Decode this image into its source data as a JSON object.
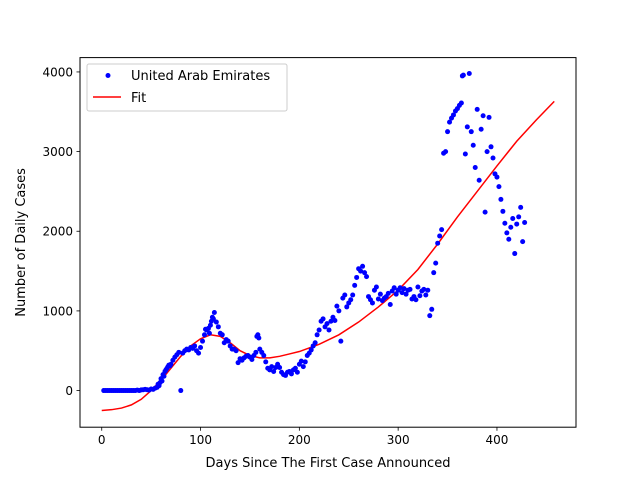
{
  "chart_data": {
    "type": "scatter",
    "title": "",
    "xlabel": "Days Since The First Case Announced",
    "ylabel": "Number of Daily Cases",
    "xlim": [
      -22,
      480
    ],
    "ylim": [
      -460,
      4180
    ],
    "xticks": [
      0,
      100,
      200,
      300,
      400
    ],
    "yticks": [
      0,
      1000,
      2000,
      3000,
      4000
    ],
    "grid": false,
    "legend_position": "top-left",
    "series": [
      {
        "name": "United Arab Emirates",
        "kind": "scatter",
        "color": "#0000ff",
        "points": [
          [
            2,
            0
          ],
          [
            4,
            0
          ],
          [
            6,
            0
          ],
          [
            8,
            0
          ],
          [
            10,
            0
          ],
          [
            12,
            0
          ],
          [
            14,
            0
          ],
          [
            16,
            0
          ],
          [
            18,
            0
          ],
          [
            20,
            0
          ],
          [
            22,
            0
          ],
          [
            24,
            0
          ],
          [
            26,
            0
          ],
          [
            28,
            0
          ],
          [
            30,
            0
          ],
          [
            32,
            0
          ],
          [
            34,
            0
          ],
          [
            36,
            5
          ],
          [
            38,
            0
          ],
          [
            40,
            8
          ],
          [
            42,
            10
          ],
          [
            44,
            15
          ],
          [
            46,
            10
          ],
          [
            48,
            5
          ],
          [
            50,
            20
          ],
          [
            52,
            15
          ],
          [
            54,
            30
          ],
          [
            56,
            40
          ],
          [
            57,
            80
          ],
          [
            58,
            60
          ],
          [
            59,
            100
          ],
          [
            60,
            150
          ],
          [
            61,
            120
          ],
          [
            62,
            200
          ],
          [
            63,
            180
          ],
          [
            64,
            240
          ],
          [
            65,
            260
          ],
          [
            66,
            280
          ],
          [
            67,
            300
          ],
          [
            68,
            320
          ],
          [
            69,
            310
          ],
          [
            70,
            330
          ],
          [
            72,
            380
          ],
          [
            74,
            420
          ],
          [
            76,
            450
          ],
          [
            78,
            480
          ],
          [
            80,
            0
          ],
          [
            82,
            470
          ],
          [
            84,
            500
          ],
          [
            86,
            520
          ],
          [
            88,
            510
          ],
          [
            90,
            540
          ],
          [
            92,
            530
          ],
          [
            94,
            560
          ],
          [
            96,
            500
          ],
          [
            98,
            470
          ],
          [
            100,
            540
          ],
          [
            102,
            620
          ],
          [
            104,
            700
          ],
          [
            105,
            770
          ],
          [
            106,
            760
          ],
          [
            108,
            780
          ],
          [
            109,
            720
          ],
          [
            110,
            820
          ],
          [
            111,
            870
          ],
          [
            112,
            920
          ],
          [
            113,
            900
          ],
          [
            114,
            980
          ],
          [
            116,
            860
          ],
          [
            118,
            800
          ],
          [
            120,
            720
          ],
          [
            122,
            700
          ],
          [
            124,
            600
          ],
          [
            126,
            640
          ],
          [
            128,
            620
          ],
          [
            130,
            560
          ],
          [
            132,
            520
          ],
          [
            134,
            520
          ],
          [
            136,
            500
          ],
          [
            138,
            350
          ],
          [
            140,
            400
          ],
          [
            142,
            380
          ],
          [
            144,
            410
          ],
          [
            146,
            430
          ],
          [
            148,
            440
          ],
          [
            150,
            420
          ],
          [
            152,
            390
          ],
          [
            154,
            440
          ],
          [
            156,
            480
          ],
          [
            157,
            680
          ],
          [
            158,
            700
          ],
          [
            159,
            660
          ],
          [
            160,
            520
          ],
          [
            162,
            480
          ],
          [
            164,
            440
          ],
          [
            166,
            360
          ],
          [
            168,
            280
          ],
          [
            170,
            260
          ],
          [
            172,
            300
          ],
          [
            174,
            240
          ],
          [
            176,
            290
          ],
          [
            178,
            330
          ],
          [
            180,
            290
          ],
          [
            182,
            230
          ],
          [
            184,
            200
          ],
          [
            186,
            190
          ],
          [
            188,
            230
          ],
          [
            190,
            240
          ],
          [
            192,
            210
          ],
          [
            194,
            260
          ],
          [
            196,
            280
          ],
          [
            198,
            230
          ],
          [
            200,
            330
          ],
          [
            202,
            370
          ],
          [
            204,
            300
          ],
          [
            206,
            360
          ],
          [
            208,
            440
          ],
          [
            210,
            470
          ],
          [
            212,
            510
          ],
          [
            214,
            560
          ],
          [
            216,
            600
          ],
          [
            218,
            700
          ],
          [
            220,
            760
          ],
          [
            222,
            870
          ],
          [
            224,
            900
          ],
          [
            226,
            800
          ],
          [
            228,
            840
          ],
          [
            230,
            760
          ],
          [
            232,
            870
          ],
          [
            234,
            920
          ],
          [
            236,
            880
          ],
          [
            238,
            1060
          ],
          [
            240,
            1000
          ],
          [
            242,
            620
          ],
          [
            244,
            1160
          ],
          [
            246,
            1200
          ],
          [
            248,
            1050
          ],
          [
            250,
            1100
          ],
          [
            252,
            1140
          ],
          [
            254,
            1200
          ],
          [
            256,
            1320
          ],
          [
            258,
            1420
          ],
          [
            260,
            1530
          ],
          [
            262,
            1500
          ],
          [
            264,
            1560
          ],
          [
            266,
            1480
          ],
          [
            268,
            1430
          ],
          [
            270,
            1180
          ],
          [
            272,
            1140
          ],
          [
            274,
            1100
          ],
          [
            276,
            1260
          ],
          [
            278,
            1300
          ],
          [
            280,
            1150
          ],
          [
            282,
            1210
          ],
          [
            284,
            1130
          ],
          [
            286,
            1160
          ],
          [
            288,
            1180
          ],
          [
            290,
            1220
          ],
          [
            292,
            1080
          ],
          [
            294,
            1250
          ],
          [
            296,
            1290
          ],
          [
            298,
            1210
          ],
          [
            300,
            1260
          ],
          [
            302,
            1290
          ],
          [
            304,
            1230
          ],
          [
            306,
            1280
          ],
          [
            308,
            1210
          ],
          [
            310,
            1260
          ],
          [
            312,
            1270
          ],
          [
            314,
            1150
          ],
          [
            316,
            1180
          ],
          [
            318,
            1140
          ],
          [
            320,
            1300
          ],
          [
            322,
            1190
          ],
          [
            324,
            1250
          ],
          [
            326,
            1270
          ],
          [
            328,
            1200
          ],
          [
            330,
            1260
          ],
          [
            332,
            940
          ],
          [
            334,
            1020
          ],
          [
            336,
            1480
          ],
          [
            338,
            1600
          ],
          [
            340,
            1850
          ],
          [
            342,
            1940
          ],
          [
            344,
            2020
          ],
          [
            346,
            2980
          ],
          [
            348,
            3000
          ],
          [
            350,
            3250
          ],
          [
            352,
            3370
          ],
          [
            354,
            3420
          ],
          [
            356,
            3460
          ],
          [
            358,
            3510
          ],
          [
            360,
            3540
          ],
          [
            362,
            3580
          ],
          [
            364,
            3610
          ],
          [
            365,
            3950
          ],
          [
            366,
            3960
          ],
          [
            368,
            2970
          ],
          [
            370,
            3310
          ],
          [
            372,
            3980
          ],
          [
            374,
            3250
          ],
          [
            376,
            3080
          ],
          [
            378,
            2800
          ],
          [
            380,
            3530
          ],
          [
            382,
            2640
          ],
          [
            384,
            3280
          ],
          [
            386,
            3450
          ],
          [
            388,
            2240
          ],
          [
            390,
            3000
          ],
          [
            392,
            3430
          ],
          [
            394,
            3060
          ],
          [
            396,
            2920
          ],
          [
            398,
            2720
          ],
          [
            400,
            2680
          ],
          [
            402,
            2560
          ],
          [
            404,
            2400
          ],
          [
            406,
            2250
          ],
          [
            408,
            2100
          ],
          [
            410,
            1980
          ],
          [
            412,
            1900
          ],
          [
            414,
            2050
          ],
          [
            416,
            2160
          ],
          [
            418,
            1720
          ],
          [
            420,
            2090
          ],
          [
            422,
            2180
          ],
          [
            424,
            2300
          ],
          [
            426,
            1870
          ],
          [
            428,
            2110
          ]
        ]
      },
      {
        "name": "Fit",
        "kind": "line",
        "color": "#ff0000",
        "points": [
          [
            0,
            -250
          ],
          [
            10,
            -240
          ],
          [
            20,
            -220
          ],
          [
            30,
            -180
          ],
          [
            40,
            -110
          ],
          [
            50,
            0
          ],
          [
            60,
            130
          ],
          [
            70,
            280
          ],
          [
            80,
            430
          ],
          [
            90,
            560
          ],
          [
            100,
            650
          ],
          [
            110,
            700
          ],
          [
            120,
            680
          ],
          [
            130,
            600
          ],
          [
            140,
            500
          ],
          [
            150,
            440
          ],
          [
            160,
            410
          ],
          [
            170,
            410
          ],
          [
            180,
            430
          ],
          [
            190,
            460
          ],
          [
            200,
            490
          ],
          [
            220,
            580
          ],
          [
            240,
            700
          ],
          [
            260,
            860
          ],
          [
            280,
            1050
          ],
          [
            300,
            1260
          ],
          [
            320,
            1520
          ],
          [
            340,
            1840
          ],
          [
            360,
            2180
          ],
          [
            380,
            2500
          ],
          [
            400,
            2820
          ],
          [
            420,
            3130
          ],
          [
            440,
            3400
          ],
          [
            458,
            3630
          ]
        ]
      }
    ]
  }
}
